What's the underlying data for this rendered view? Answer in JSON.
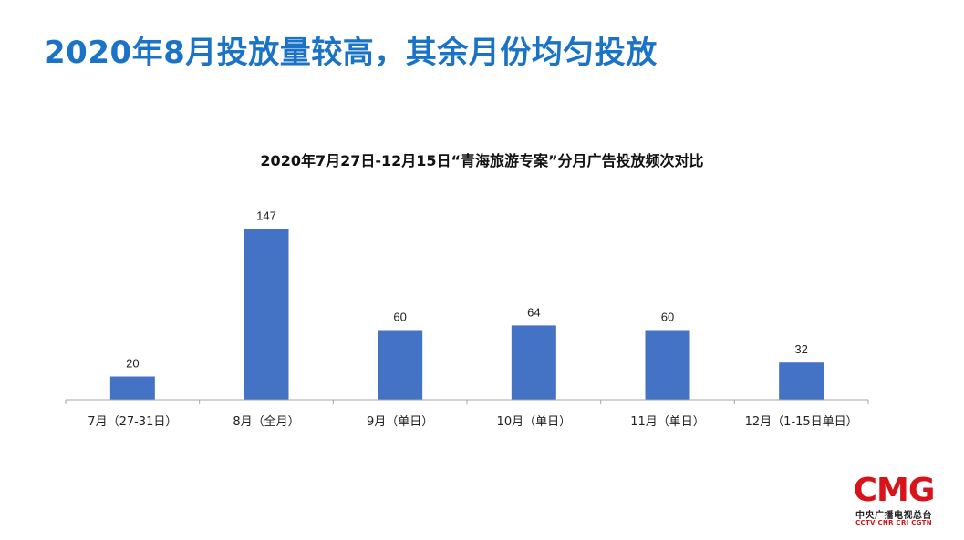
{
  "slide": {
    "title": "2020年8月投放量较高，其余月份均匀投放"
  },
  "chart_data": {
    "type": "bar",
    "title": "2020年7月27日-12月15日“青海旅游专案”分月广告投放频次对比",
    "categories": [
      "7月（27-31日）",
      "8月（全月）",
      "9月（单日）",
      "10月（单日）",
      "11月（单日）",
      "12月（1-15日单日）"
    ],
    "values": [
      20,
      147,
      60,
      64,
      60,
      32
    ],
    "xlabel": "",
    "ylabel": "",
    "ylim": [
      0,
      160
    ],
    "grid": false,
    "legend": "none",
    "bar_color": "#4472c4",
    "axis_color": "#a6a6a6"
  },
  "logo": {
    "mark": "CMG",
    "name": "中央广播电视总台",
    "brands": "CCTV CNR CRI CGTN",
    "color": "#d7141a"
  }
}
